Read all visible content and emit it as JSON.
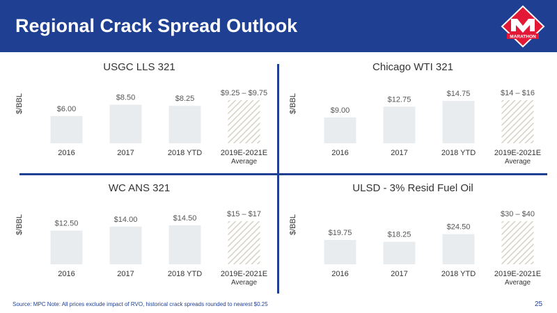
{
  "header": {
    "title": "Regional Crack Spread Outlook",
    "logo_text": "MARATHON",
    "background_color": "#1f3f93",
    "logo_color": "#e31837"
  },
  "colors": {
    "bar_fill": "#e9ecef",
    "hatch_stroke": "#d6d1c4",
    "divider": "#1f3f93"
  },
  "chart_data": [
    {
      "type": "bar",
      "title": "USGC LLS 321",
      "ylabel": "$/BBL",
      "categories": [
        "2016",
        "2017",
        "2018 YTD",
        "2019E-2021E\nAverage"
      ],
      "values": [
        6.0,
        8.5,
        8.25,
        9.5
      ],
      "value_labels": [
        "$6.00",
        "$8.50",
        "$8.25",
        "$9.25 – $9.75"
      ],
      "projected": [
        false,
        false,
        false,
        true
      ]
    },
    {
      "type": "bar",
      "title": "Chicago WTI 321",
      "ylabel": "$/BBL",
      "categories": [
        "2016",
        "2017",
        "2018 YTD",
        "2019E-2021E\nAverage"
      ],
      "values": [
        9.0,
        12.75,
        14.75,
        15.0
      ],
      "value_labels": [
        "$9.00",
        "$12.75",
        "$14.75",
        "$14 – $16"
      ],
      "projected": [
        false,
        false,
        false,
        true
      ]
    },
    {
      "type": "bar",
      "title": "WC ANS 321",
      "ylabel": "$/BBL",
      "categories": [
        "2016",
        "2017",
        "2018 YTD",
        "2019E-2021E\nAverage"
      ],
      "values": [
        12.5,
        14.0,
        14.5,
        16.0
      ],
      "value_labels": [
        "$12.50",
        "$14.00",
        "$14.50",
        "$15 – $17"
      ],
      "projected": [
        false,
        false,
        false,
        true
      ]
    },
    {
      "type": "bar",
      "title": "ULSD - 3% Resid Fuel Oil",
      "ylabel": "$/BBL",
      "categories": [
        "2016",
        "2017",
        "2018 YTD",
        "2019E-2021E\nAverage"
      ],
      "values": [
        19.75,
        18.25,
        24.5,
        35.0
      ],
      "value_labels": [
        "$19.75",
        "$18.25",
        "$24.50",
        "$30 – $40"
      ],
      "projected": [
        false,
        false,
        false,
        true
      ]
    }
  ],
  "footer": {
    "source": "Source: MPC  Note: All prices exclude impact of RVO, historical crack spreads rounded to nearest $0.25",
    "page_number": "25"
  }
}
